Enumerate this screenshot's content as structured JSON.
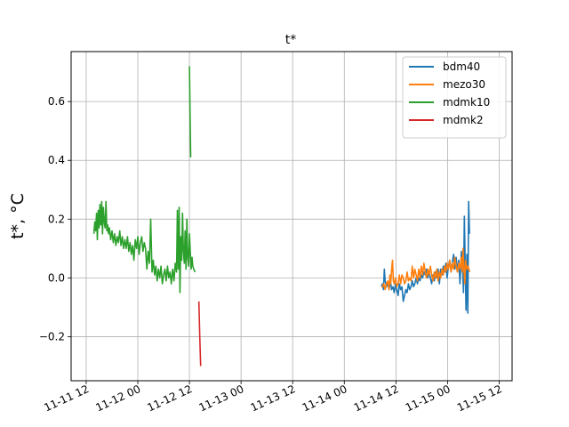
{
  "chart_data": {
    "type": "line",
    "title": "t*",
    "ylabel": "t*, °C",
    "xlabel": "",
    "grid": true,
    "legend_position": "top-right",
    "x_unit": "hours",
    "xlim": [
      -3.5,
      99
    ],
    "ylim": [
      -0.35,
      0.77
    ],
    "x_ticks": [
      {
        "x": 0,
        "label": "11-11 12"
      },
      {
        "x": 12,
        "label": "11-12 00"
      },
      {
        "x": 24,
        "label": "11-12 12"
      },
      {
        "x": 36,
        "label": "11-13 00"
      },
      {
        "x": 48,
        "label": "11-13 12"
      },
      {
        "x": 60,
        "label": "11-14 00"
      },
      {
        "x": 72,
        "label": "11-14 12"
      },
      {
        "x": 84,
        "label": "11-15 00"
      },
      {
        "x": 96,
        "label": "11-15 12"
      }
    ],
    "y_ticks": [
      {
        "y": -0.2,
        "label": "−0.2"
      },
      {
        "y": 0.0,
        "label": "0.0"
      },
      {
        "y": 0.2,
        "label": "0.2"
      },
      {
        "y": 0.4,
        "label": "0.4"
      },
      {
        "y": 0.6,
        "label": "0.6"
      }
    ],
    "series": [
      {
        "name": "bdm40",
        "color": "#1f77b4",
        "points": [
          [
            68.6,
            -0.03
          ],
          [
            68.9,
            -0.02
          ],
          [
            69.1,
            -0.04
          ],
          [
            69.3,
            0.03
          ],
          [
            69.5,
            -0.01
          ],
          [
            69.8,
            -0.03
          ],
          [
            70.1,
            -0.02
          ],
          [
            70.4,
            -0.04
          ],
          [
            70.7,
            -0.01
          ],
          [
            71.0,
            -0.04
          ],
          [
            71.3,
            -0.03
          ],
          [
            71.6,
            -0.05
          ],
          [
            71.9,
            -0.02
          ],
          [
            72.2,
            -0.04
          ],
          [
            72.5,
            -0.06
          ],
          [
            72.8,
            -0.02
          ],
          [
            73.1,
            -0.04
          ],
          [
            73.4,
            -0.03
          ],
          [
            73.7,
            -0.08
          ],
          [
            74.0,
            -0.06
          ],
          [
            74.3,
            -0.04
          ],
          [
            74.6,
            -0.05
          ],
          [
            74.9,
            -0.02
          ],
          [
            75.2,
            -0.04
          ],
          [
            75.5,
            -0.03
          ],
          [
            75.8,
            -0.01
          ],
          [
            76.1,
            -0.03
          ],
          [
            76.4,
            -0.02
          ],
          [
            76.7,
            0.0
          ],
          [
            77.0,
            -0.02
          ],
          [
            77.3,
            0.0
          ],
          [
            77.6,
            -0.01
          ],
          [
            77.9,
            0.01
          ],
          [
            78.2,
            0.0
          ],
          [
            78.5,
            0.02
          ],
          [
            78.8,
            0.01
          ],
          [
            79.1,
            0.03
          ],
          [
            79.4,
            0.0
          ],
          [
            79.7,
            0.02
          ],
          [
            80.0,
            0.0
          ],
          [
            80.3,
            -0.02
          ],
          [
            80.6,
            0.01
          ],
          [
            80.9,
            -0.01
          ],
          [
            81.2,
            0.02
          ],
          [
            81.5,
            0.0
          ],
          [
            81.8,
            0.03
          ],
          [
            82.1,
            -0.02
          ],
          [
            82.4,
            0.03
          ],
          [
            82.7,
            0.01
          ],
          [
            83.0,
            0.04
          ],
          [
            83.3,
            0.02
          ],
          [
            83.6,
            0.05
          ],
          [
            83.9,
            0.0
          ],
          [
            84.2,
            0.04
          ],
          [
            84.5,
            0.06
          ],
          [
            84.8,
            0.02
          ],
          [
            85.1,
            0.05
          ],
          [
            85.4,
            0.08
          ],
          [
            85.7,
            0.03
          ],
          [
            86.0,
            0.07
          ],
          [
            86.3,
            0.02
          ],
          [
            86.6,
            0.06
          ],
          [
            86.9,
            -0.02
          ],
          [
            87.2,
            0.09
          ],
          [
            87.5,
            0.03
          ],
          [
            87.7,
            -0.05
          ],
          [
            87.9,
            0.21
          ],
          [
            88.1,
            0.04
          ],
          [
            88.3,
            -0.11
          ],
          [
            88.5,
            0.08
          ],
          [
            88.7,
            -0.12
          ],
          [
            88.9,
            0.26
          ],
          [
            89.1,
            0.15
          ]
        ]
      },
      {
        "name": "mezo30",
        "color": "#ff7f0e",
        "points": [
          [
            68.6,
            -0.03
          ],
          [
            68.9,
            -0.03
          ],
          [
            69.2,
            -0.02
          ],
          [
            69.5,
            -0.04
          ],
          [
            69.8,
            -0.02
          ],
          [
            70.1,
            -0.01
          ],
          [
            70.4,
            -0.04
          ],
          [
            70.6,
            0.01
          ],
          [
            70.8,
            -0.02
          ],
          [
            71.0,
            0.03
          ],
          [
            71.2,
            0.06
          ],
          [
            71.4,
            -0.01
          ],
          [
            71.6,
            -0.02
          ],
          [
            71.9,
            0.0
          ],
          [
            72.2,
            -0.03
          ],
          [
            72.5,
            -0.02
          ],
          [
            72.8,
            0.01
          ],
          [
            73.1,
            -0.02
          ],
          [
            73.4,
            0.01
          ],
          [
            73.7,
            0.0
          ],
          [
            74.0,
            -0.02
          ],
          [
            74.3,
            -0.01
          ],
          [
            74.6,
            0.02
          ],
          [
            74.9,
            -0.01
          ],
          [
            75.2,
            0.0
          ],
          [
            75.5,
            -0.01
          ],
          [
            75.8,
            0.04
          ],
          [
            76.1,
            0.0
          ],
          [
            76.4,
            0.03
          ],
          [
            76.7,
            0.01
          ],
          [
            77.0,
            -0.01
          ],
          [
            77.3,
            0.03
          ],
          [
            77.6,
            0.0
          ],
          [
            77.9,
            0.04
          ],
          [
            78.2,
            0.01
          ],
          [
            78.5,
            0.05
          ],
          [
            78.8,
            0.02
          ],
          [
            79.1,
            0.0
          ],
          [
            79.4,
            0.03
          ],
          [
            79.7,
            0.01
          ],
          [
            80.0,
            0.04
          ],
          [
            80.3,
            0.01
          ],
          [
            80.6,
            -0.01
          ],
          [
            80.9,
            0.02
          ],
          [
            81.2,
            0.0
          ],
          [
            81.5,
            0.03
          ],
          [
            81.8,
            -0.01
          ],
          [
            82.1,
            0.02
          ],
          [
            82.4,
            0.0
          ],
          [
            82.7,
            0.03
          ],
          [
            83.0,
            0.01
          ],
          [
            83.3,
            0.04
          ],
          [
            83.6,
            0.02
          ],
          [
            83.9,
            0.05
          ],
          [
            84.2,
            0.03
          ],
          [
            84.5,
            0.06
          ],
          [
            84.8,
            0.02
          ],
          [
            85.1,
            0.05
          ],
          [
            85.4,
            0.03
          ],
          [
            85.7,
            0.07
          ],
          [
            86.0,
            0.04
          ],
          [
            86.3,
            0.02
          ],
          [
            86.6,
            0.05
          ],
          [
            86.9,
            0.03
          ],
          [
            87.2,
            0.07
          ],
          [
            87.4,
            0.02
          ],
          [
            87.6,
            0.1
          ],
          [
            87.8,
            0.03
          ],
          [
            88.0,
            -0.02
          ],
          [
            88.2,
            0.06
          ],
          [
            88.5,
            0.03
          ],
          [
            88.8,
            0.04
          ],
          [
            89.1,
            0.02
          ]
        ]
      },
      {
        "name": "mdmk10",
        "color": "#2ca02c",
        "points": [
          [
            1.8,
            0.15
          ],
          [
            2.0,
            0.19
          ],
          [
            2.2,
            0.16
          ],
          [
            2.4,
            0.22
          ],
          [
            2.6,
            0.13
          ],
          [
            2.8,
            0.23
          ],
          [
            3.0,
            0.17
          ],
          [
            3.2,
            0.25
          ],
          [
            3.4,
            0.18
          ],
          [
            3.6,
            0.26
          ],
          [
            3.8,
            0.15
          ],
          [
            4.0,
            0.24
          ],
          [
            4.2,
            0.19
          ],
          [
            4.4,
            0.17
          ],
          [
            4.6,
            0.26
          ],
          [
            4.8,
            0.16
          ],
          [
            5.0,
            0.18
          ],
          [
            5.2,
            0.15
          ],
          [
            5.4,
            0.17
          ],
          [
            5.7,
            0.13
          ],
          [
            6.0,
            0.16
          ],
          [
            6.3,
            0.12
          ],
          [
            6.6,
            0.15
          ],
          [
            6.9,
            0.11
          ],
          [
            7.2,
            0.14
          ],
          [
            7.5,
            0.12
          ],
          [
            7.8,
            0.16
          ],
          [
            8.1,
            0.11
          ],
          [
            8.4,
            0.14
          ],
          [
            8.7,
            0.1
          ],
          [
            9.0,
            0.13
          ],
          [
            9.3,
            0.1
          ],
          [
            9.6,
            0.14
          ],
          [
            9.9,
            0.09
          ],
          [
            10.2,
            0.12
          ],
          [
            10.5,
            0.08
          ],
          [
            10.8,
            0.11
          ],
          [
            11.1,
            0.06
          ],
          [
            11.4,
            0.13
          ],
          [
            11.7,
            0.1
          ],
          [
            12.0,
            0.14
          ],
          [
            12.3,
            0.08
          ],
          [
            12.6,
            0.12
          ],
          [
            12.9,
            0.14
          ],
          [
            13.2,
            0.09
          ],
          [
            13.5,
            0.12
          ],
          [
            13.8,
            0.1
          ],
          [
            14.1,
            0.03
          ],
          [
            14.4,
            0.09
          ],
          [
            14.7,
            0.05
          ],
          [
            15.0,
            0.2
          ],
          [
            15.3,
            0.02
          ],
          [
            15.6,
            0.06
          ],
          [
            15.9,
            0.01
          ],
          [
            16.2,
            0.04
          ],
          [
            16.5,
            -0.01
          ],
          [
            16.8,
            0.03
          ],
          [
            17.1,
            0.0
          ],
          [
            17.4,
            0.04
          ],
          [
            17.7,
            -0.02
          ],
          [
            18.0,
            0.01
          ],
          [
            18.3,
            0.03
          ],
          [
            18.6,
            -0.01
          ],
          [
            18.9,
            0.04
          ],
          [
            19.2,
            0.0
          ],
          [
            19.5,
            0.02
          ],
          [
            19.8,
            -0.02
          ],
          [
            20.1,
            0.03
          ],
          [
            20.4,
            -0.01
          ],
          [
            20.7,
            0.05
          ],
          [
            21.0,
            0.02
          ],
          [
            21.2,
            0.23
          ],
          [
            21.4,
            0.03
          ],
          [
            21.6,
            0.24
          ],
          [
            21.8,
            -0.05
          ],
          [
            22.0,
            0.14
          ],
          [
            22.2,
            0.06
          ],
          [
            22.4,
            0.22
          ],
          [
            22.6,
            0.09
          ],
          [
            22.8,
            0.05
          ],
          [
            23.0,
            0.16
          ],
          [
            23.2,
            0.03
          ],
          [
            23.4,
            0.2
          ],
          [
            23.6,
            0.07
          ],
          [
            23.8,
            0.04
          ],
          [
            24.0,
            0.15
          ],
          [
            24.2,
            0.09
          ],
          [
            24.4,
            0.03
          ],
          [
            24.6,
            0.07
          ],
          [
            24.8,
            0.04
          ],
          [
            25.0,
            0.03
          ],
          [
            25.3,
            0.02
          ],
          [
            null,
            null
          ],
          [
            24.0,
            0.72
          ],
          [
            24.15,
            0.55
          ],
          [
            24.3,
            0.41
          ]
        ]
      },
      {
        "name": "mdmk2",
        "color": "#d62728",
        "points": [
          [
            26.2,
            -0.08
          ],
          [
            26.4,
            -0.2
          ],
          [
            26.6,
            -0.3
          ]
        ]
      }
    ]
  }
}
